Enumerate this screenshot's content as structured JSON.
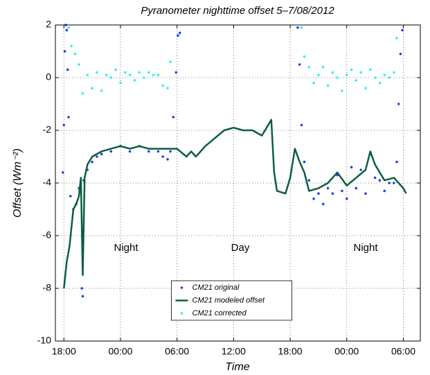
{
  "chart_data": {
    "type": "scatter",
    "title": "Pyranometer nighttime offset 5–7/08/2012",
    "xlabel": "Time",
    "ylabel": "Offset (Wm⁻²)",
    "xlim": [
      17.1,
      55.8
    ],
    "ylim": [
      -10,
      2
    ],
    "xticks": [
      {
        "value": 18,
        "label": "18:00"
      },
      {
        "value": 24,
        "label": "00:00"
      },
      {
        "value": 30,
        "label": "06:00"
      },
      {
        "value": 36,
        "label": "12:00"
      },
      {
        "value": 42,
        "label": "18:00"
      },
      {
        "value": 48,
        "label": "00:00"
      },
      {
        "value": 54,
        "label": "06:00"
      }
    ],
    "yticks": [
      -10,
      -8,
      -6,
      -4,
      -2,
      0,
      2
    ],
    "grid": true,
    "legend": "lower center",
    "annotations": [
      "Night",
      "Day",
      "Night"
    ],
    "series": [
      {
        "name": "CM21 original",
        "color": "#1f3ff0",
        "marker": "dot",
        "x": [
          17.9,
          18.0,
          18.1,
          18.2,
          18.3,
          18.4,
          18.5,
          18.7,
          19.0,
          19.3,
          19.6,
          19.9,
          20.0,
          20.1,
          20.5,
          21,
          21.5,
          22,
          23,
          24,
          25,
          26,
          27,
          28,
          28.5,
          29,
          29.3,
          29.6,
          29.9,
          30.1,
          30.3,
          42.8,
          43,
          43.2,
          43.5,
          44,
          44.5,
          45,
          45.5,
          46,
          46.5,
          47,
          47.5,
          48,
          48.5,
          49,
          49.5,
          50,
          50.5,
          51,
          51.5,
          52,
          52.5,
          53,
          53.3,
          53.5,
          53.7,
          53.9
        ],
        "values": [
          -3.6,
          -1.8,
          1.0,
          2.0,
          1.8,
          0.3,
          -1.5,
          -4.5,
          -5.0,
          -4.8,
          -4.2,
          -8.0,
          -8.3,
          -3.9,
          -3.5,
          -3.2,
          -3.0,
          -2.9,
          -2.8,
          -2.6,
          -2.8,
          -2.6,
          -2.8,
          -2.8,
          -3.0,
          -3.1,
          -2.8,
          -1.5,
          0.2,
          1.6,
          1.7,
          1.9,
          0.5,
          -1.8,
          -3.2,
          -3.9,
          -4.6,
          -4.4,
          -4.8,
          -4.2,
          -4.4,
          -3.7,
          -4.3,
          -4.6,
          -3.4,
          -4.2,
          -3.5,
          -4.4,
          -2.9,
          -3.8,
          -3.9,
          -4.3,
          -4.0,
          -4.0,
          -3.2,
          -1.0,
          0.9,
          1.8
        ]
      },
      {
        "name": "CM21 modeled offset",
        "color": "#0b5e3c",
        "marker": "line",
        "x": [
          18,
          18.3,
          18.6,
          19,
          19.3,
          19.6,
          19.8,
          20,
          20.2,
          20.5,
          21,
          22,
          23,
          24,
          25,
          26,
          27,
          28,
          29,
          30,
          31,
          31.5,
          32,
          33,
          34,
          35,
          36,
          37,
          38,
          39,
          40,
          40.3,
          40.6,
          41.5,
          42,
          42.5,
          43,
          43.5,
          44,
          45,
          46,
          47,
          48,
          49,
          50,
          50.5,
          51,
          52,
          53,
          54,
          54.3
        ],
        "values": [
          -8,
          -7,
          -6.4,
          -5,
          -4.8,
          -4.5,
          -3.8,
          -7.5,
          -3.8,
          -3.3,
          -3,
          -2.8,
          -2.7,
          -2.6,
          -2.7,
          -2.6,
          -2.7,
          -2.7,
          -2.7,
          -2.7,
          -3.0,
          -2.8,
          -3.0,
          -2.6,
          -2.3,
          -2.0,
          -1.9,
          -2.0,
          -2.0,
          -2.2,
          -1.6,
          -3.6,
          -4.3,
          -4.4,
          -3.8,
          -2.7,
          -3.2,
          -3.6,
          -4.3,
          -4.2,
          -4.0,
          -3.6,
          -4.1,
          -3.8,
          -3.5,
          -2.8,
          -3.3,
          -3.9,
          -3.8,
          -4.2,
          -4.4
        ]
      },
      {
        "name": "CM21 corrected",
        "color": "#33f0f0",
        "marker": "dot",
        "x": [
          18.5,
          18.8,
          19.2,
          19.6,
          20,
          20.5,
          21,
          21.5,
          22,
          22.5,
          23,
          23.5,
          24,
          24.5,
          25,
          25.5,
          26,
          26.5,
          27,
          27.5,
          28,
          28.5,
          29,
          29.3,
          43.2,
          43.5,
          44,
          44.5,
          45,
          45.5,
          46,
          46.5,
          47,
          47.5,
          48,
          48.5,
          49,
          49.5,
          50,
          50.5,
          51,
          51.5,
          52,
          52.5,
          53,
          53.3
        ],
        "values": [
          1.9,
          1.2,
          0.9,
          0.5,
          -0.6,
          0.1,
          -0.4,
          0.2,
          -0.5,
          0.1,
          0.0,
          0.3,
          -0.2,
          0.2,
          0.1,
          -0.1,
          0.2,
          0.0,
          0.2,
          0.1,
          0.1,
          -0.3,
          -0.4,
          0.6,
          1.9,
          0.8,
          0.4,
          -0.2,
          0.1,
          0.4,
          -0.3,
          0.2,
          0.0,
          -0.5,
          0.1,
          0.3,
          -0.1,
          0.2,
          -0.4,
          0.3,
          0.0,
          -0.2,
          0.1,
          0.0,
          0.2,
          1.5
        ]
      }
    ]
  }
}
